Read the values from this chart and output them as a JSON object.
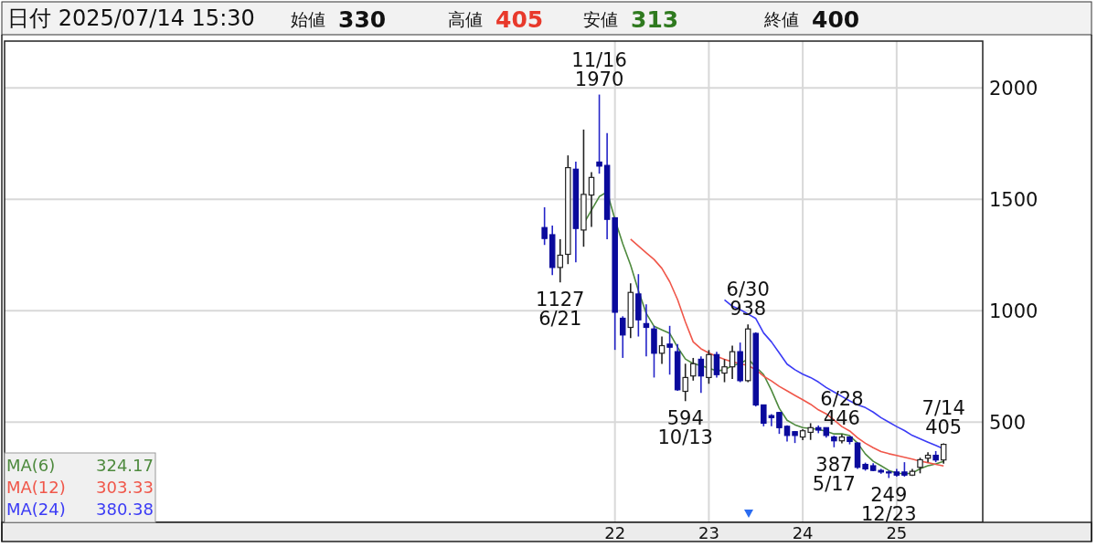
{
  "chart_data": {
    "type": "candlestick",
    "title": "日付 2025/07/14 15:30",
    "x": [
      "2021-04",
      "2021-05",
      "2021-06",
      "2021-07",
      "2021-08",
      "2021-09",
      "2021-10",
      "2021-11",
      "2021-12",
      "2022-01",
      "2022-02",
      "2022-03",
      "2022-04",
      "2022-05",
      "2022-06",
      "2022-07",
      "2022-08",
      "2022-09",
      "2022-10",
      "2022-11",
      "2022-12",
      "2023-01",
      "2023-02",
      "2023-03",
      "2023-04",
      "2023-05",
      "2023-06",
      "2023-07",
      "2023-08",
      "2023-09",
      "2023-10",
      "2023-11",
      "2023-12",
      "2024-01",
      "2024-02",
      "2024-03",
      "2024-04",
      "2024-05",
      "2024-06",
      "2024-07",
      "2024-08",
      "2024-09",
      "2024-10",
      "2024-11",
      "2024-12",
      "2025-01",
      "2025-02",
      "2025-03",
      "2025-04",
      "2025-05",
      "2025-06",
      "2025-07"
    ],
    "ohlc": [
      [
        1373,
        1464,
        1295,
        1324
      ],
      [
        1341,
        1382,
        1160,
        1194
      ],
      [
        1194,
        1321,
        1127,
        1249
      ],
      [
        1253,
        1697,
        1209,
        1642
      ],
      [
        1635,
        1669,
        1217,
        1369
      ],
      [
        1362,
        1813,
        1287,
        1522
      ],
      [
        1519,
        1622,
        1376,
        1598
      ],
      [
        1667,
        1970,
        1615,
        1649
      ],
      [
        1652,
        1797,
        1321,
        1410
      ],
      [
        1417,
        1417,
        824,
        993
      ],
      [
        966,
        975,
        788,
        891
      ],
      [
        925,
        1123,
        877,
        1082
      ],
      [
        1075,
        1164,
        884,
        959
      ],
      [
        942,
        1029,
        795,
        925
      ],
      [
        918,
        932,
        700,
        809
      ],
      [
        809,
        884,
        761,
        843
      ],
      [
        850,
        932,
        713,
        836
      ],
      [
        816,
        850,
        640,
        645
      ],
      [
        638,
        762,
        594,
        700
      ],
      [
        707,
        788,
        686,
        762
      ],
      [
        782,
        795,
        631,
        707
      ],
      [
        700,
        823,
        672,
        803
      ],
      [
        803,
        815,
        700,
        713
      ],
      [
        720,
        782,
        679,
        748
      ],
      [
        748,
        843,
        693,
        816
      ],
      [
        816,
        857,
        679,
        686
      ],
      [
        686,
        938,
        679,
        918
      ],
      [
        898,
        903,
        570,
        577
      ],
      [
        577,
        577,
        481,
        495
      ],
      [
        529,
        536,
        481,
        520
      ],
      [
        543,
        546,
        447,
        475
      ],
      [
        481,
        485,
        413,
        440
      ],
      [
        457,
        460,
        406,
        440
      ],
      [
        433,
        468,
        419,
        461
      ],
      [
        454,
        495,
        420,
        475
      ],
      [
        475,
        485,
        450,
        464
      ],
      [
        475,
        475,
        430,
        440
      ],
      [
        433,
        440,
        387,
        416
      ],
      [
        416,
        446,
        405,
        433
      ],
      [
        433,
        436,
        400,
        413
      ],
      [
        406,
        410,
        290,
        297
      ],
      [
        310,
        318,
        282,
        290
      ],
      [
        304,
        315,
        280,
        283
      ],
      [
        283,
        290,
        268,
        276
      ],
      [
        276,
        283,
        249,
        273
      ],
      [
        276,
        290,
        255,
        262
      ],
      [
        276,
        320,
        255,
        262
      ],
      [
        262,
        290,
        258,
        279
      ],
      [
        297,
        340,
        270,
        331
      ],
      [
        338,
        365,
        320,
        351
      ],
      [
        351,
        370,
        320,
        330
      ],
      [
        330,
        405,
        313,
        400
      ]
    ],
    "series": [
      {
        "name": "MA(6)",
        "type": "line",
        "color": "#4e8a3e",
        "values": [
          null,
          null,
          null,
          null,
          null,
          1390,
          1451,
          1512,
          1533,
          1410,
          1300,
          1205,
          1090,
          988,
          930,
          914,
          898,
          836,
          783,
          762,
          754,
          742,
          730,
          734,
          754,
          762,
          783,
          null,
          713,
          643,
          562,
          508,
          488,
          475,
          471,
          467,
          459,
          447,
          447,
          439,
          406,
          357,
          324,
          304,
          283,
          271,
          267,
          271,
          291,
          304,
          312,
          324
        ]
      },
      {
        "name": "MA(12)",
        "type": "line",
        "color": "#f0574a",
        "values": [
          null,
          null,
          null,
          null,
          null,
          null,
          null,
          null,
          null,
          null,
          null,
          1321,
          1290,
          1260,
          1230,
          1190,
          1130,
          1050,
          950,
          860,
          829,
          810,
          795,
          782,
          770,
          762,
          754,
          735,
          706,
          685,
          660,
          640,
          620,
          600,
          580,
          555,
          537,
          510,
          480,
          460,
          430,
          405,
          385,
          368,
          358,
          350,
          342,
          334,
          325,
          318,
          310,
          303
        ]
      },
      {
        "name": "MA(24)",
        "type": "line",
        "color": "#3b3bf5",
        "values": [
          null,
          null,
          null,
          null,
          null,
          null,
          null,
          null,
          null,
          null,
          null,
          null,
          null,
          null,
          null,
          null,
          null,
          null,
          null,
          null,
          null,
          null,
          null,
          1049,
          1020,
          1005,
          985,
          965,
          900,
          860,
          810,
          760,
          735,
          715,
          700,
          680,
          655,
          635,
          615,
          595,
          578,
          565,
          545,
          520,
          500,
          480,
          462,
          440,
          425,
          410,
          395,
          380
        ]
      }
    ],
    "xlim": [
      "2015-07",
      "2025-12"
    ],
    "xticks": [
      {
        "value": "2022-01",
        "label": "22"
      },
      {
        "value": "2023-01",
        "label": "23"
      },
      {
        "value": "2024-01",
        "label": "24"
      },
      {
        "value": "2025-01",
        "label": "25"
      }
    ],
    "ylim": [
      50,
      2210
    ],
    "yticks": [
      500,
      1000,
      1500,
      2000
    ],
    "grid": true,
    "legend": "bottom left",
    "annotations": [
      "始値",
      "330",
      "高値",
      "405",
      "安値",
      "313",
      "終値",
      "400",
      "324.17",
      "303.33",
      "380.38",
      {
        "text": "11/16\n1970",
        "x": "2021-11",
        "y": 1970
      },
      {
        "text": "1127\n6/21",
        "x": "2021-06",
        "y": 1127
      },
      {
        "text": "594\n10/13",
        "x": "2022-10",
        "y": 594
      },
      {
        "text": "6/30\n938",
        "x": "2023-06",
        "y": 938
      },
      {
        "text": "6/28\n446",
        "x": "2024-06",
        "y": 446
      },
      {
        "text": "387\n5/17",
        "x": "2024-05",
        "y": 387
      },
      {
        "text": "249\n12/23",
        "x": "2024-12",
        "y": 249
      },
      {
        "text": "7/14\n405",
        "x": "2025-07",
        "y": 405
      }
    ]
  }
}
